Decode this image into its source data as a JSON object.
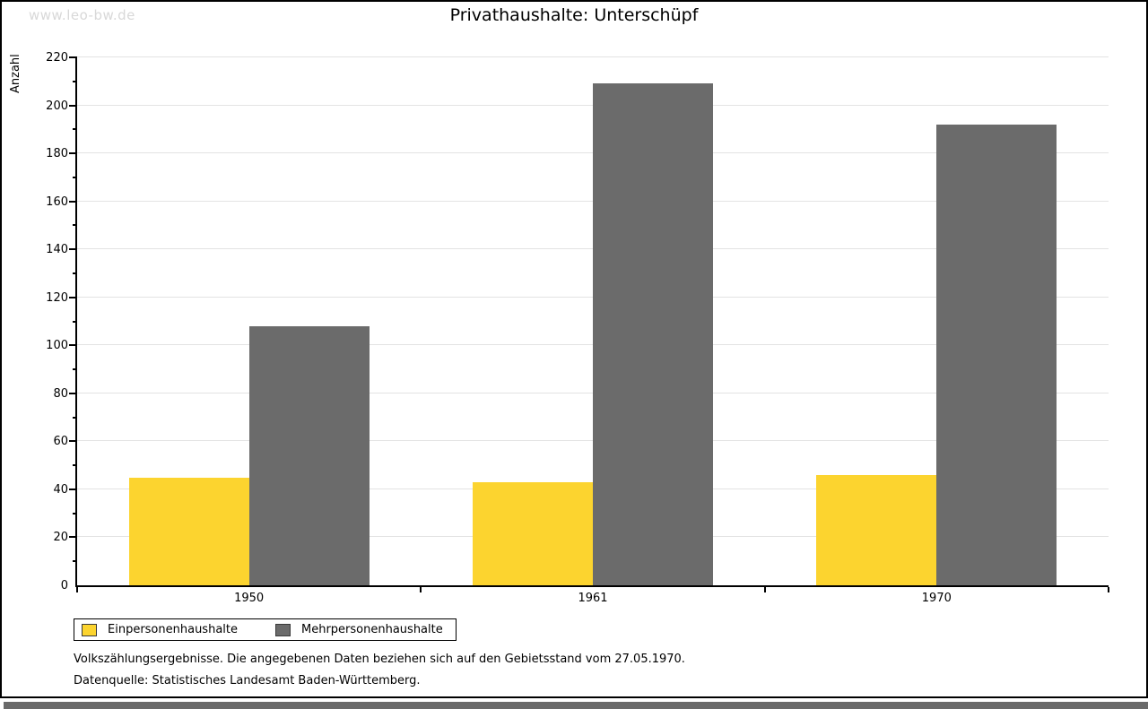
{
  "watermark": "www.leo-bw.de",
  "chart_data": {
    "type": "bar",
    "title": "Privathaushalte: Unterschüpf",
    "ylabel": "Anzahl",
    "categories": [
      "1950",
      "1961",
      "1970"
    ],
    "series": [
      {
        "name": "Einpersonenhaushalte",
        "color": "#FCD42F",
        "values": [
          45,
          43,
          46
        ]
      },
      {
        "name": "Mehrpersonenhaushalte",
        "color": "#6B6B6B",
        "values": [
          108,
          209,
          192
        ]
      }
    ],
    "ylim": [
      0,
      220
    ],
    "ytick_step_major": 20,
    "ytick_step_minor": 10,
    "grid": true,
    "legend_position": "bottom-left"
  },
  "footnotes": {
    "line1": "Volkszählungsergebnisse. Die angegebenen Daten beziehen sich auf den Gebietsstand vom 27.05.1970.",
    "line2": "Datenquelle: Statistisches Landesamt Baden-Württemberg."
  },
  "colors": {
    "grid": "#e3e3e3",
    "axis": "#000000",
    "watermark": "#d8d8d8",
    "bottom_strip": "#6a6a6a"
  }
}
